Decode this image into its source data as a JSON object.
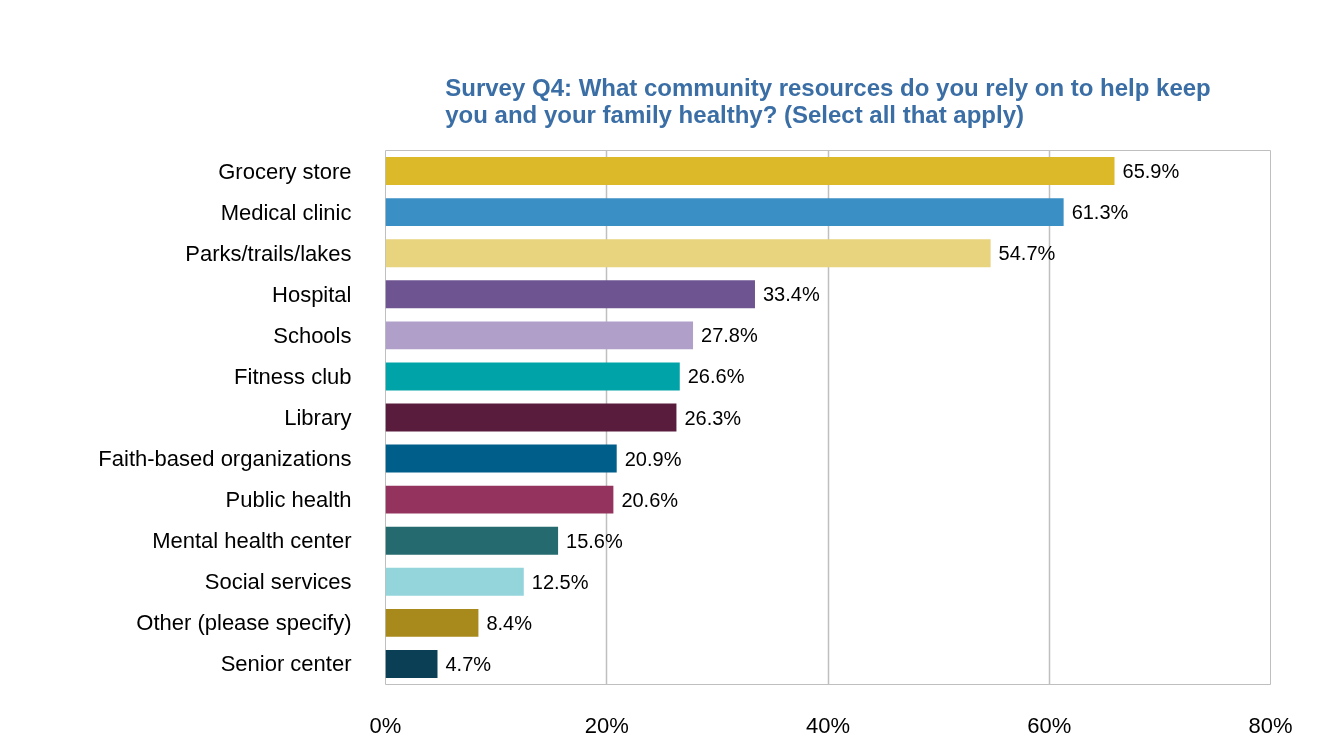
{
  "chart_data": {
    "type": "bar",
    "orientation": "horizontal",
    "title": "Survey Q4: What community resources do you rely on to help keep you and your family healthy? (Select all that apply)",
    "categories": [
      "Grocery store",
      "Medical clinic",
      "Parks/trails/lakes",
      "Hospital",
      "Schools",
      "Fitness club",
      "Library",
      "Faith-based organizations",
      "Public health",
      "Mental health center",
      "Social services",
      "Other (please specify)",
      "Senior center"
    ],
    "values": [
      65.9,
      61.3,
      54.7,
      33.4,
      27.8,
      26.6,
      26.3,
      20.9,
      20.6,
      15.6,
      12.5,
      8.4,
      4.7
    ],
    "value_labels": [
      "65.9%",
      "61.3%",
      "54.7%",
      "33.4%",
      "27.8%",
      "26.6%",
      "26.3%",
      "20.9%",
      "20.6%",
      "15.6%",
      "12.5%",
      "8.4%",
      "4.7%"
    ],
    "colors": [
      "#dbb928",
      "#3a8fc4",
      "#e8d37e",
      "#6e5592",
      "#b09fc9",
      "#00a3a8",
      "#5a1c3c",
      "#005f8a",
      "#94345e",
      "#256a6e",
      "#93d5da",
      "#a8891b",
      "#0a3f55"
    ],
    "xlim": [
      0,
      80
    ],
    "xticks": [
      {
        "value": 0,
        "label": "0%"
      },
      {
        "value": 20,
        "label": "20%"
      },
      {
        "value": 40,
        "label": "40%"
      },
      {
        "value": 60,
        "label": "60%"
      },
      {
        "value": 80,
        "label": "80%"
      }
    ],
    "grid": "x"
  }
}
